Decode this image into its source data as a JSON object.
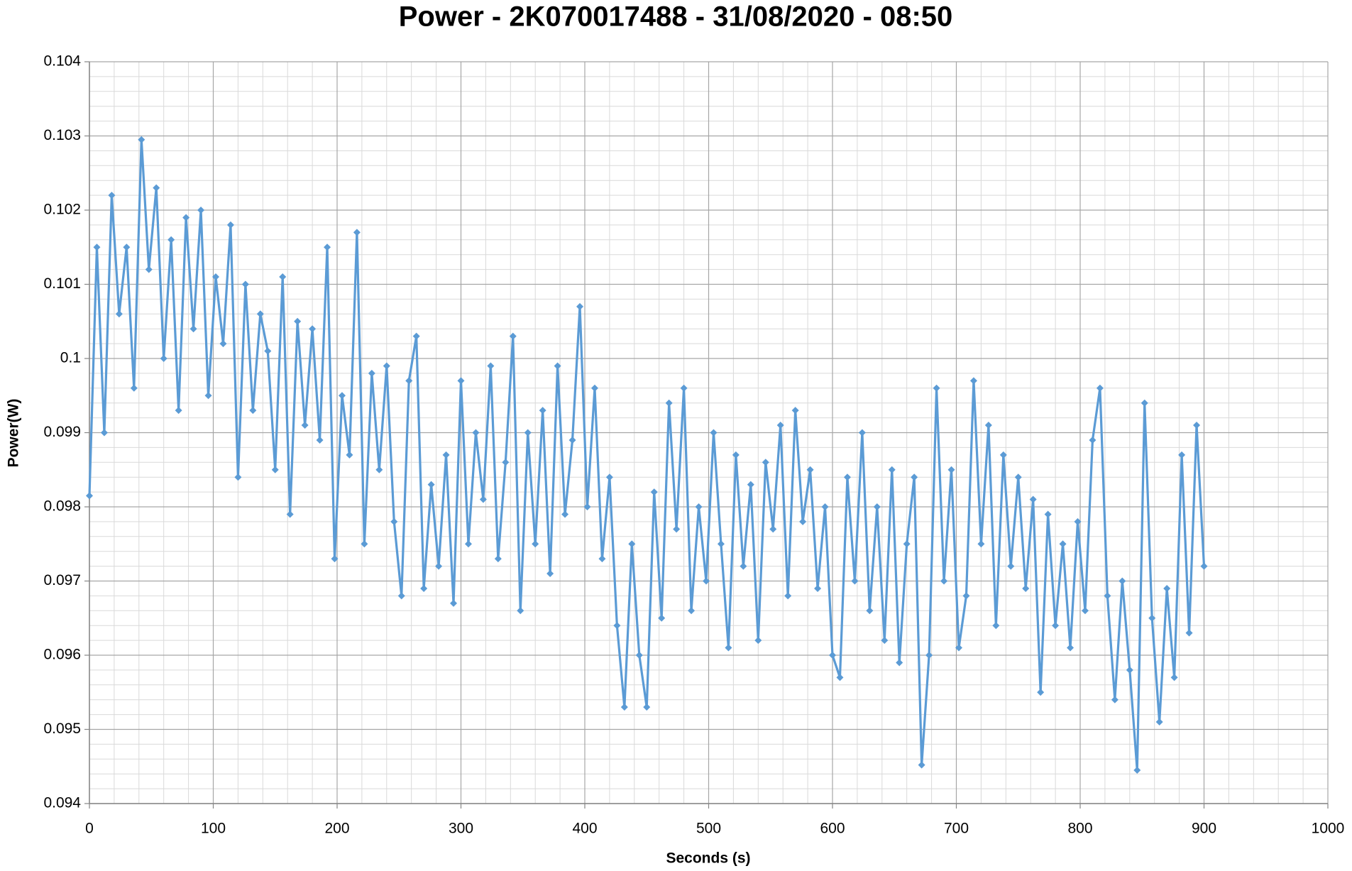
{
  "chart_data": {
    "type": "line",
    "title": "Power - 2K070017488 - 31/08/2020 - 08:50",
    "x_label": "Seconds (s)",
    "y_label": "Power(W)",
    "xlim": [
      0,
      1000
    ],
    "xticks": [
      0,
      100,
      200,
      300,
      400,
      500,
      600,
      700,
      800,
      900,
      1000
    ],
    "ylim": [
      0.094,
      0.104
    ],
    "yticks": [
      0.094,
      0.095,
      0.096,
      0.097,
      0.098,
      0.099,
      0.1,
      0.101,
      0.102,
      0.103,
      0.104
    ],
    "grid": true,
    "minor_grid": true,
    "marker": "diamond",
    "x": [
      0,
      6,
      12,
      18,
      24,
      30,
      36,
      42,
      48,
      54,
      60,
      66,
      72,
      78,
      84,
      90,
      96,
      102,
      108,
      114,
      120,
      126,
      132,
      138,
      144,
      150,
      156,
      162,
      168,
      174,
      180,
      186,
      192,
      198,
      204,
      210,
      216,
      222,
      228,
      234,
      240,
      246,
      252,
      258,
      264,
      270,
      276,
      282,
      288,
      294,
      300,
      306,
      312,
      318,
      324,
      330,
      336,
      342,
      348,
      354,
      360,
      366,
      372,
      378,
      384,
      390,
      396,
      402,
      408,
      414,
      420,
      426,
      432,
      438,
      444,
      450,
      456,
      462,
      468,
      474,
      480,
      486,
      492,
      498,
      504,
      510,
      516,
      522,
      528,
      534,
      540,
      546,
      552,
      558,
      564,
      570,
      576,
      582,
      588,
      594,
      600,
      606,
      612,
      618,
      624,
      630,
      636,
      642,
      648,
      654,
      660,
      666,
      672,
      678,
      684,
      690,
      696,
      702,
      708,
      714,
      720,
      726,
      732,
      738,
      744,
      750,
      756,
      762,
      768,
      774,
      780,
      786,
      792,
      798,
      804,
      810,
      816,
      822,
      828,
      834,
      840,
      846,
      852,
      858,
      864,
      870,
      876,
      882,
      888,
      894,
      900
    ],
    "series": [
      {
        "color": "#5b9bd5",
        "values": [
          0.09815,
          0.1015,
          0.099,
          0.1022,
          0.1006,
          0.1015,
          0.0996,
          0.10295,
          0.1012,
          0.1023,
          0.1,
          0.1016,
          0.0993,
          0.1019,
          0.1004,
          0.102,
          0.0995,
          0.1011,
          0.1002,
          0.1018,
          0.0984,
          0.101,
          0.0993,
          0.1006,
          0.1001,
          0.0985,
          0.1011,
          0.0979,
          0.1005,
          0.0991,
          0.1004,
          0.0989,
          0.1015,
          0.0973,
          0.0995,
          0.0987,
          0.1017,
          0.0975,
          0.0998,
          0.0985,
          0.0999,
          0.0978,
          0.0968,
          0.0997,
          0.1003,
          0.0969,
          0.0983,
          0.0972,
          0.0987,
          0.0967,
          0.0997,
          0.0975,
          0.099,
          0.0981,
          0.0999,
          0.0973,
          0.0986,
          0.1003,
          0.0966,
          0.099,
          0.0975,
          0.0993,
          0.0971,
          0.0999,
          0.0979,
          0.0989,
          0.1007,
          0.098,
          0.0996,
          0.0973,
          0.0984,
          0.0964,
          0.0953,
          0.0975,
          0.096,
          0.0953,
          0.0982,
          0.0965,
          0.0994,
          0.0977,
          0.0996,
          0.0966,
          0.098,
          0.097,
          0.099,
          0.0975,
          0.0961,
          0.0987,
          0.0972,
          0.0983,
          0.0962,
          0.0986,
          0.0977,
          0.0991,
          0.0968,
          0.0993,
          0.0978,
          0.0985,
          0.0969,
          0.098,
          0.096,
          0.0957,
          0.0984,
          0.097,
          0.099,
          0.0966,
          0.098,
          0.0962,
          0.0985,
          0.0959,
          0.0975,
          0.0984,
          0.09452,
          0.096,
          0.0996,
          0.097,
          0.0985,
          0.0961,
          0.0968,
          0.0997,
          0.0975,
          0.0991,
          0.0964,
          0.0987,
          0.0972,
          0.0984,
          0.0969,
          0.0981,
          0.0955,
          0.0979,
          0.0964,
          0.0975,
          0.0961,
          0.0978,
          0.0966,
          0.0989,
          0.0996,
          0.0968,
          0.0954,
          0.097,
          0.0958,
          0.09445,
          0.0994,
          0.0965,
          0.0951,
          0.0969,
          0.0957,
          0.0987,
          0.0963,
          0.0991,
          0.0972
        ]
      }
    ]
  }
}
